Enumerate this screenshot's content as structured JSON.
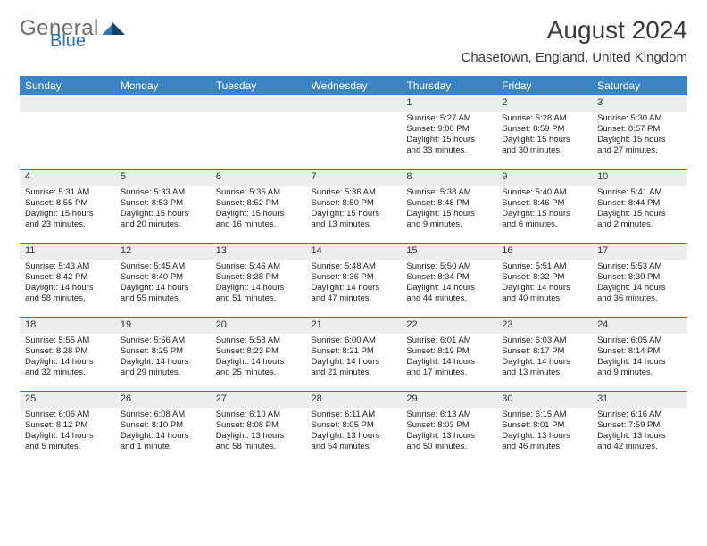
{
  "brand": {
    "general": "General",
    "blue": "Blue"
  },
  "title": "August 2024",
  "location": "Chasetown, England, United Kingdom",
  "colors": {
    "header_bg": "#3a83c5",
    "rule": "#2f72b5",
    "band": "#eceded",
    "brand_blue": "#2f72b5",
    "brand_grey": "#6d6d6d"
  },
  "days_of_week": [
    "Sunday",
    "Monday",
    "Tuesday",
    "Wednesday",
    "Thursday",
    "Friday",
    "Saturday"
  ],
  "weeks": [
    [
      {
        "n": "",
        "sr": "",
        "ss": "",
        "dl": ""
      },
      {
        "n": "",
        "sr": "",
        "ss": "",
        "dl": ""
      },
      {
        "n": "",
        "sr": "",
        "ss": "",
        "dl": ""
      },
      {
        "n": "",
        "sr": "",
        "ss": "",
        "dl": ""
      },
      {
        "n": "1",
        "sr": "Sunrise: 5:27 AM",
        "ss": "Sunset: 9:00 PM",
        "dl": "Daylight: 15 hours and 33 minutes."
      },
      {
        "n": "2",
        "sr": "Sunrise: 5:28 AM",
        "ss": "Sunset: 8:59 PM",
        "dl": "Daylight: 15 hours and 30 minutes."
      },
      {
        "n": "3",
        "sr": "Sunrise: 5:30 AM",
        "ss": "Sunset: 8:57 PM",
        "dl": "Daylight: 15 hours and 27 minutes."
      }
    ],
    [
      {
        "n": "4",
        "sr": "Sunrise: 5:31 AM",
        "ss": "Sunset: 8:55 PM",
        "dl": "Daylight: 15 hours and 23 minutes."
      },
      {
        "n": "5",
        "sr": "Sunrise: 5:33 AM",
        "ss": "Sunset: 8:53 PM",
        "dl": "Daylight: 15 hours and 20 minutes."
      },
      {
        "n": "6",
        "sr": "Sunrise: 5:35 AM",
        "ss": "Sunset: 8:52 PM",
        "dl": "Daylight: 15 hours and 16 minutes."
      },
      {
        "n": "7",
        "sr": "Sunrise: 5:36 AM",
        "ss": "Sunset: 8:50 PM",
        "dl": "Daylight: 15 hours and 13 minutes."
      },
      {
        "n": "8",
        "sr": "Sunrise: 5:38 AM",
        "ss": "Sunset: 8:48 PM",
        "dl": "Daylight: 15 hours and 9 minutes."
      },
      {
        "n": "9",
        "sr": "Sunrise: 5:40 AM",
        "ss": "Sunset: 8:46 PM",
        "dl": "Daylight: 15 hours and 6 minutes."
      },
      {
        "n": "10",
        "sr": "Sunrise: 5:41 AM",
        "ss": "Sunset: 8:44 PM",
        "dl": "Daylight: 15 hours and 2 minutes."
      }
    ],
    [
      {
        "n": "11",
        "sr": "Sunrise: 5:43 AM",
        "ss": "Sunset: 8:42 PM",
        "dl": "Daylight: 14 hours and 58 minutes."
      },
      {
        "n": "12",
        "sr": "Sunrise: 5:45 AM",
        "ss": "Sunset: 8:40 PM",
        "dl": "Daylight: 14 hours and 55 minutes."
      },
      {
        "n": "13",
        "sr": "Sunrise: 5:46 AM",
        "ss": "Sunset: 8:38 PM",
        "dl": "Daylight: 14 hours and 51 minutes."
      },
      {
        "n": "14",
        "sr": "Sunrise: 5:48 AM",
        "ss": "Sunset: 8:36 PM",
        "dl": "Daylight: 14 hours and 47 minutes."
      },
      {
        "n": "15",
        "sr": "Sunrise: 5:50 AM",
        "ss": "Sunset: 8:34 PM",
        "dl": "Daylight: 14 hours and 44 minutes."
      },
      {
        "n": "16",
        "sr": "Sunrise: 5:51 AM",
        "ss": "Sunset: 8:32 PM",
        "dl": "Daylight: 14 hours and 40 minutes."
      },
      {
        "n": "17",
        "sr": "Sunrise: 5:53 AM",
        "ss": "Sunset: 8:30 PM",
        "dl": "Daylight: 14 hours and 36 minutes."
      }
    ],
    [
      {
        "n": "18",
        "sr": "Sunrise: 5:55 AM",
        "ss": "Sunset: 8:28 PM",
        "dl": "Daylight: 14 hours and 32 minutes."
      },
      {
        "n": "19",
        "sr": "Sunrise: 5:56 AM",
        "ss": "Sunset: 8:25 PM",
        "dl": "Daylight: 14 hours and 29 minutes."
      },
      {
        "n": "20",
        "sr": "Sunrise: 5:58 AM",
        "ss": "Sunset: 8:23 PM",
        "dl": "Daylight: 14 hours and 25 minutes."
      },
      {
        "n": "21",
        "sr": "Sunrise: 6:00 AM",
        "ss": "Sunset: 8:21 PM",
        "dl": "Daylight: 14 hours and 21 minutes."
      },
      {
        "n": "22",
        "sr": "Sunrise: 6:01 AM",
        "ss": "Sunset: 8:19 PM",
        "dl": "Daylight: 14 hours and 17 minutes."
      },
      {
        "n": "23",
        "sr": "Sunrise: 6:03 AM",
        "ss": "Sunset: 8:17 PM",
        "dl": "Daylight: 14 hours and 13 minutes."
      },
      {
        "n": "24",
        "sr": "Sunrise: 6:05 AM",
        "ss": "Sunset: 8:14 PM",
        "dl": "Daylight: 14 hours and 9 minutes."
      }
    ],
    [
      {
        "n": "25",
        "sr": "Sunrise: 6:06 AM",
        "ss": "Sunset: 8:12 PM",
        "dl": "Daylight: 14 hours and 5 minutes."
      },
      {
        "n": "26",
        "sr": "Sunrise: 6:08 AM",
        "ss": "Sunset: 8:10 PM",
        "dl": "Daylight: 14 hours and 1 minute."
      },
      {
        "n": "27",
        "sr": "Sunrise: 6:10 AM",
        "ss": "Sunset: 8:08 PM",
        "dl": "Daylight: 13 hours and 58 minutes."
      },
      {
        "n": "28",
        "sr": "Sunrise: 6:11 AM",
        "ss": "Sunset: 8:05 PM",
        "dl": "Daylight: 13 hours and 54 minutes."
      },
      {
        "n": "29",
        "sr": "Sunrise: 6:13 AM",
        "ss": "Sunset: 8:03 PM",
        "dl": "Daylight: 13 hours and 50 minutes."
      },
      {
        "n": "30",
        "sr": "Sunrise: 6:15 AM",
        "ss": "Sunset: 8:01 PM",
        "dl": "Daylight: 13 hours and 46 minutes."
      },
      {
        "n": "31",
        "sr": "Sunrise: 6:16 AM",
        "ss": "Sunset: 7:59 PM",
        "dl": "Daylight: 13 hours and 42 minutes."
      }
    ]
  ]
}
